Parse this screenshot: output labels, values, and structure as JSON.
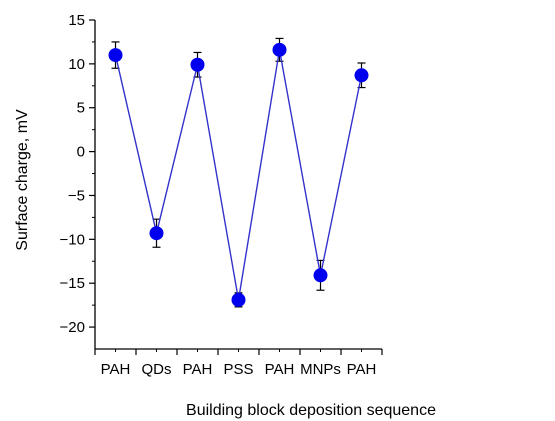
{
  "chart_data": {
    "type": "line",
    "xlabel": "Building block deposition sequence",
    "ylabel": "Surface charge, mV",
    "categories": [
      "PAH",
      "QDs",
      "PAH",
      "PSS",
      "PAH",
      "MNPs",
      "PAH"
    ],
    "series": [
      {
        "values": [
          11,
          -9.3,
          9.9,
          -16.9,
          11.6,
          -14.1,
          8.7
        ],
        "errors": [
          1.5,
          1.6,
          1.4,
          0.8,
          1.3,
          1.7,
          1.4
        ]
      }
    ],
    "ylim": [
      -22.5,
      15
    ],
    "yticks": [
      15,
      10,
      5,
      0,
      -5,
      -10,
      -15,
      -20
    ],
    "ytick_labels": [
      "15",
      "10",
      "5",
      "0",
      "−5",
      "−10",
      "−15",
      "−20"
    ],
    "grid": false,
    "legend": "none",
    "colors": {
      "line": "#3333cc",
      "marker": "#0000ee",
      "error_bar": "#000000",
      "axis": "#000000"
    }
  }
}
